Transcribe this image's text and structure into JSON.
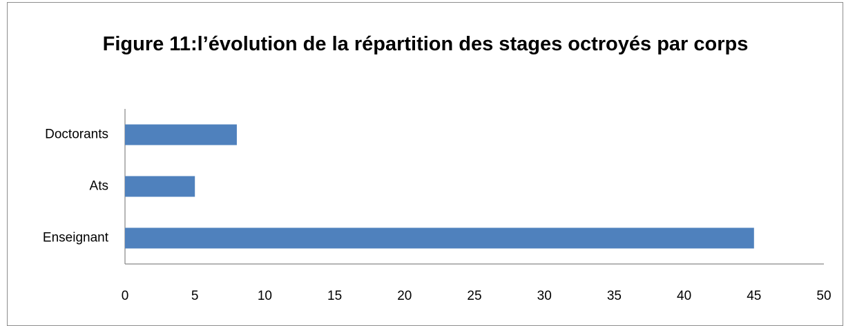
{
  "chart_data": {
    "type": "hbar",
    "title": "Figure 11:l’évolution de la répartition des stages octroyés par corps",
    "categories": [
      "Enseignant",
      "Ats",
      "Doctorants"
    ],
    "values": [
      45,
      5,
      8
    ],
    "color": "#4f81bd",
    "xlim": [
      0,
      50
    ],
    "xticks": [
      0,
      5,
      10,
      15,
      20,
      25,
      30,
      35,
      40,
      45,
      50
    ],
    "grid": false
  }
}
